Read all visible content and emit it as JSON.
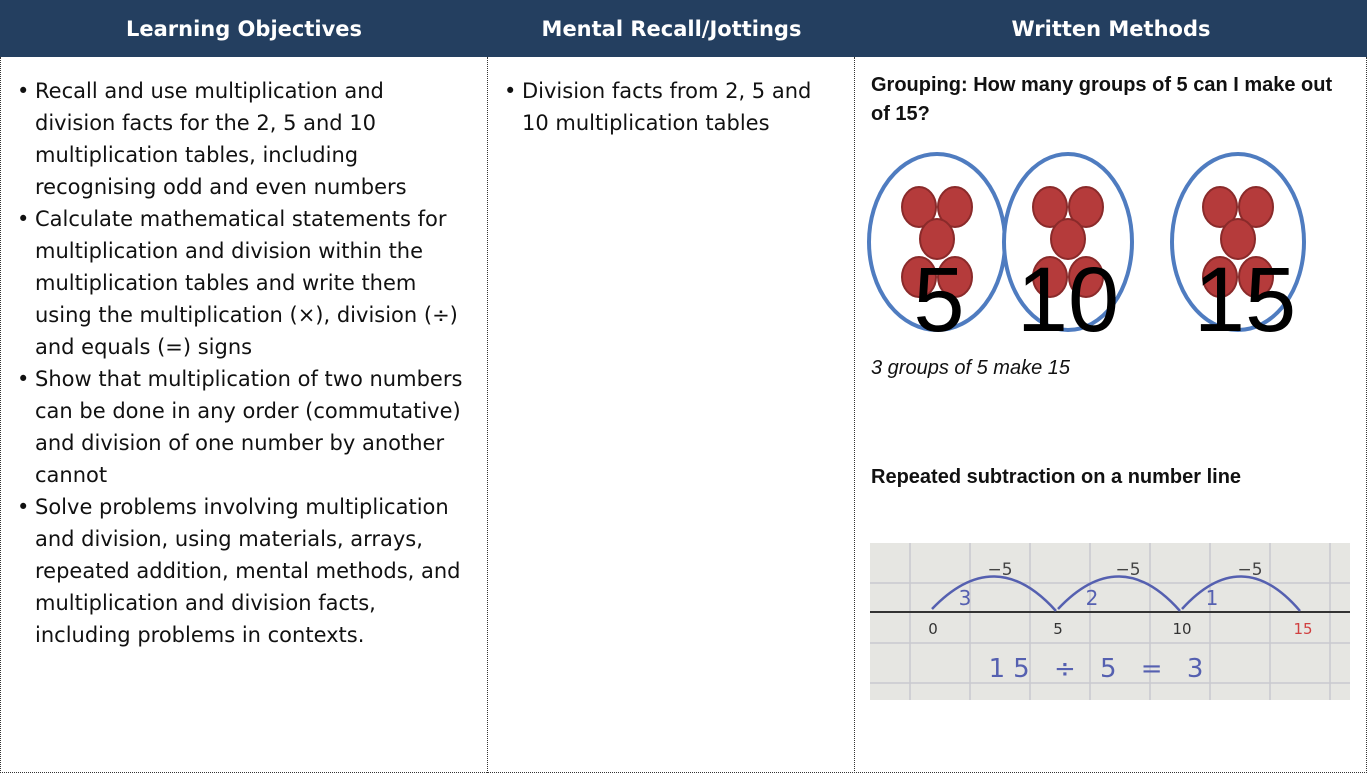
{
  "table": {
    "headers": [
      "Learning Objectives",
      "Mental Recall/Jottings",
      "Written Methods"
    ],
    "learning_objectives": [
      "Recall and use multiplication and division facts for the 2, 5 and 10 multiplication tables, including recognising odd and even numbers",
      "Calculate mathematical statements for multiplication and division within the multiplication tables and write them using the multiplication (×), division (÷) and equals (=) signs",
      "Show that multiplication of two numbers can be done in any order (commutative) and division of one number by another cannot",
      "Solve problems involving multiplication and division, using materials, arrays, repeated addition, mental methods, and multiplication and division facts, including problems in contexts."
    ],
    "mental_recall": [
      "Division facts from 2, 5 and 10 multiplication tables"
    ],
    "written_methods": {
      "grouping_heading": "Grouping: How many groups of 5 can I make out of 15?",
      "group_labels": [
        "5",
        "10",
        "15"
      ],
      "grouping_caption": "3 groups of 5 make 15",
      "subtraction_heading": "Repeated subtraction on a number line",
      "jump_labels": [
        "−5",
        "−5",
        "−5"
      ],
      "jump_counts": [
        "3",
        "2",
        "1"
      ],
      "line_labels": [
        "0",
        "5",
        "10",
        "15"
      ],
      "equation": "15 ÷ 5 = 3"
    }
  }
}
